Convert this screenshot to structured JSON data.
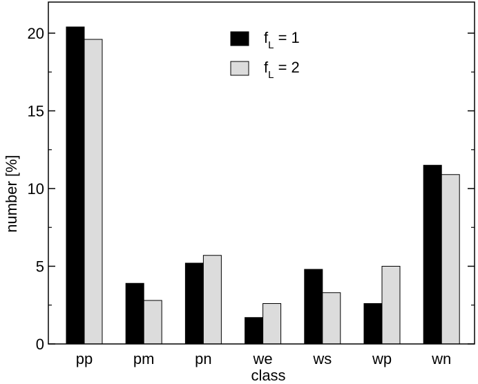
{
  "chart_data": {
    "type": "bar",
    "title": "",
    "xlabel": "class",
    "ylabel": "number [%]",
    "categories": [
      "pp",
      "pm",
      "pn",
      "we",
      "ws",
      "wp",
      "wn"
    ],
    "series": [
      {
        "name": "f_L = 1",
        "values": [
          20.4,
          3.9,
          5.2,
          1.7,
          4.8,
          2.6,
          11.5
        ],
        "color": "#000000"
      },
      {
        "name": "f_L = 2",
        "values": [
          19.6,
          2.8,
          5.7,
          2.6,
          3.3,
          5.0,
          10.9
        ],
        "color": "#dcdcdc"
      }
    ],
    "ylim": [
      0,
      22
    ],
    "yticks": [
      0,
      5,
      10,
      15,
      20
    ],
    "grid": false,
    "legend_position": "top-center"
  },
  "legend": {
    "items": [
      {
        "base": "f",
        "sub": "L",
        "rest": " = 1"
      },
      {
        "base": "f",
        "sub": "L",
        "rest": " = 2"
      }
    ]
  }
}
